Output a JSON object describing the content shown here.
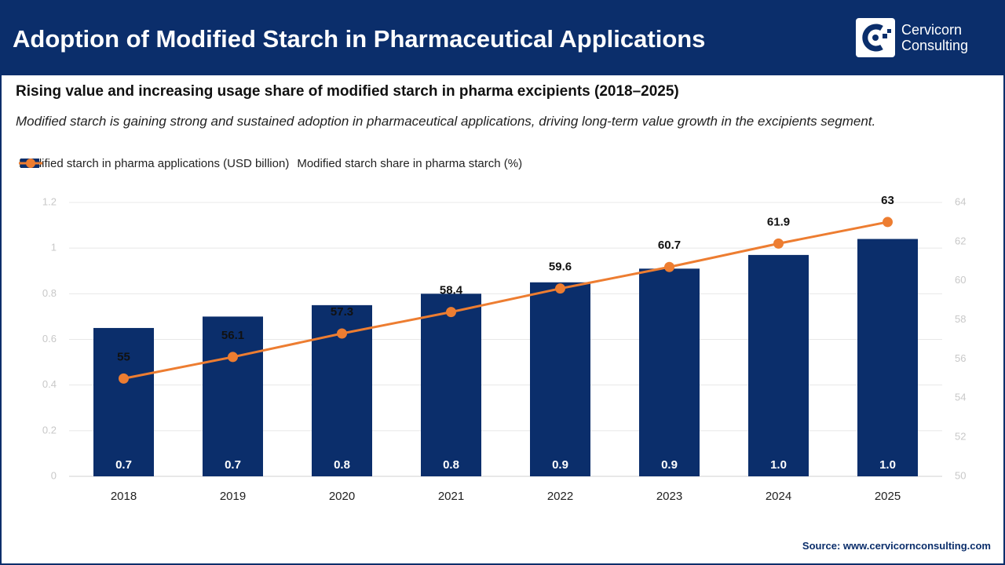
{
  "brand": [
    "Cervicorn",
    "Consulting"
  ],
  "chart_data": {
    "type": "combo",
    "title": "Adoption of Modified Starch in Pharmaceutical Applications",
    "subtitle": "Rising value and increasing usage share of modified starch in pharma excipients (2018–2025)",
    "description": "Modified starch is gaining strong and sustained adoption in pharmaceutical applications, driving long-term value growth in the excipients segment.",
    "source": "Source: www.cervicornconsulting.com",
    "categories": [
      "2018",
      "2019",
      "2020",
      "2021",
      "2022",
      "2023",
      "2024",
      "2025"
    ],
    "series": [
      {
        "name": "Modified starch in pharma applications (USD billion)",
        "type": "bar",
        "color": "#0b2e6b",
        "values": [
          0.65,
          0.7,
          0.75,
          0.8,
          0.85,
          0.91,
          0.97,
          1.04
        ],
        "value_labels": [
          "0.7",
          "0.7",
          "0.8",
          "0.8",
          "0.9",
          "0.9",
          "1.0",
          "1.0"
        ]
      },
      {
        "name": "Modified starch share in pharma starch (%)",
        "type": "line",
        "axis": "y2",
        "color": "#ed7d31",
        "values": [
          55,
          56.1,
          57.3,
          58.4,
          59.6,
          60.7,
          61.9,
          63
        ]
      }
    ],
    "ylim": [
      0,
      1.2
    ],
    "yticks": [
      0,
      0.2,
      0.4,
      0.6,
      0.8,
      1,
      1.2
    ],
    "y2lim": [
      50,
      64
    ],
    "y2ticks": [
      50,
      52,
      54,
      56,
      58,
      60,
      62,
      64
    ],
    "grid": true,
    "legend": "top-left"
  }
}
